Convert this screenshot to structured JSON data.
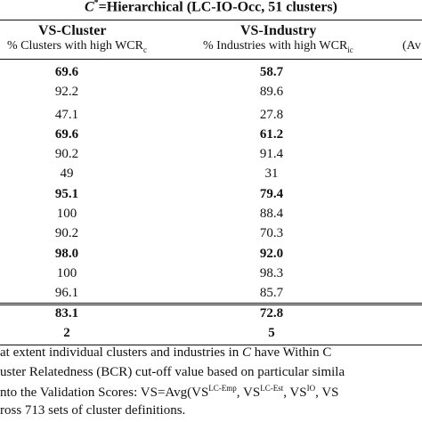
{
  "title": {
    "prefix": "C",
    "sup": "*",
    "text": "=Hierarchical (LC-IO-Occ,  51 clusters)"
  },
  "headers": {
    "col1": "VS-Cluster",
    "col2": "VS-Industry",
    "sub1": "% Clusters with high WCR",
    "sub1_sub": "c",
    "sub2": "% Industries with high WCR",
    "sub2_sub": "ic",
    "sub3": "(Av"
  },
  "rows": [
    {
      "c1": "69.6",
      "c2": "58.7",
      "bold": true
    },
    {
      "c1": "92.2",
      "c2": "89.6",
      "bold": false
    },
    {
      "c1": "47.1",
      "c2": "27.8",
      "bold": false
    },
    {
      "c1": "69.6",
      "c2": "61.2",
      "bold": true
    },
    {
      "c1": "90.2",
      "c2": "91.4",
      "bold": false
    },
    {
      "c1": "49",
      "c2": "31",
      "bold": false
    },
    {
      "c1": "95.1",
      "c2": "79.4",
      "bold": true
    },
    {
      "c1": "100",
      "c2": "88.4",
      "bold": false
    },
    {
      "c1": "90.2",
      "c2": "70.3",
      "bold": false
    },
    {
      "c1": "98.0",
      "c2": "92.0",
      "bold": true
    },
    {
      "c1": "100",
      "c2": "98.3",
      "bold": false
    },
    {
      "c1": "96.1",
      "c2": "85.7",
      "bold": false
    }
  ],
  "summary": [
    {
      "c1": "83.1",
      "c2": "72.8"
    },
    {
      "c1": "2",
      "c2": "5"
    }
  ],
  "notes": {
    "line1_a": "at extent individual clusters and industries in ",
    "line1_italic": "C",
    "line1_b": " have Within C",
    "line2": "uster Relatedness (BCR) cut-off value based on particular simila",
    "line3_a": "nto the Validation Scores: VS=Avg(VS",
    "line3_sup1": "LC-Emp",
    "line3_b": ", VS",
    "line3_sup2": "LC-Est",
    "line3_c": ", VS",
    "line3_sup3": "IO",
    "line3_d": ", VS",
    "line4": "ross 713 sets of cluster definitions."
  }
}
